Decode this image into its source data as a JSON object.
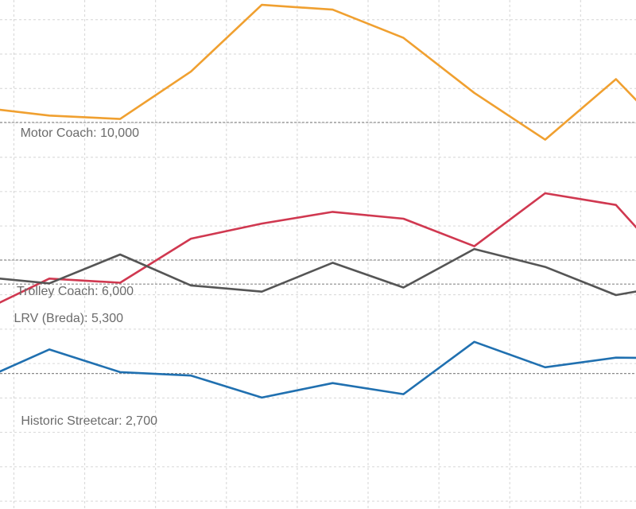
{
  "chart_data": {
    "type": "line",
    "title": "",
    "xlabel": "",
    "ylabel": "",
    "x": [
      -1,
      0,
      1,
      2,
      3,
      4,
      5,
      6,
      7,
      8,
      9
    ],
    "ylim": [
      -1240,
      13560
    ],
    "grid": true,
    "series": [
      {
        "name": "Motor Coach",
        "color": "#f0a030",
        "values": [
          10440,
          10200,
          10100,
          11480,
          13420,
          13280,
          12460,
          10860,
          9500,
          11260,
          9120
        ]
      },
      {
        "name": "Trolley Coach",
        "color": "#d03850",
        "values": [
          4460,
          5460,
          5340,
          6620,
          7060,
          7400,
          7200,
          6400,
          7940,
          7600,
          5320
        ]
      },
      {
        "name": "LRV (Breda)",
        "color": "#555555",
        "values": [
          5520,
          5320,
          6160,
          5260,
          5080,
          5920,
          5200,
          6320,
          5800,
          4980,
          5340
        ]
      },
      {
        "name": "Historic Streetcar",
        "color": "#2070b0",
        "values": [
          2480,
          3400,
          2740,
          2640,
          2000,
          2420,
          2100,
          3620,
          2880,
          3160,
          3140
        ]
      }
    ],
    "reference_lines": [
      {
        "value": 10000,
        "label": "Motor Coach: 10,000"
      },
      {
        "value": 6000,
        "label": "Trolley Coach: 6,000"
      },
      {
        "value": 5300,
        "label": "LRV (Breda): 5,300"
      },
      {
        "value": 2700,
        "label": "Historic Streetcar: 2,700"
      }
    ]
  }
}
